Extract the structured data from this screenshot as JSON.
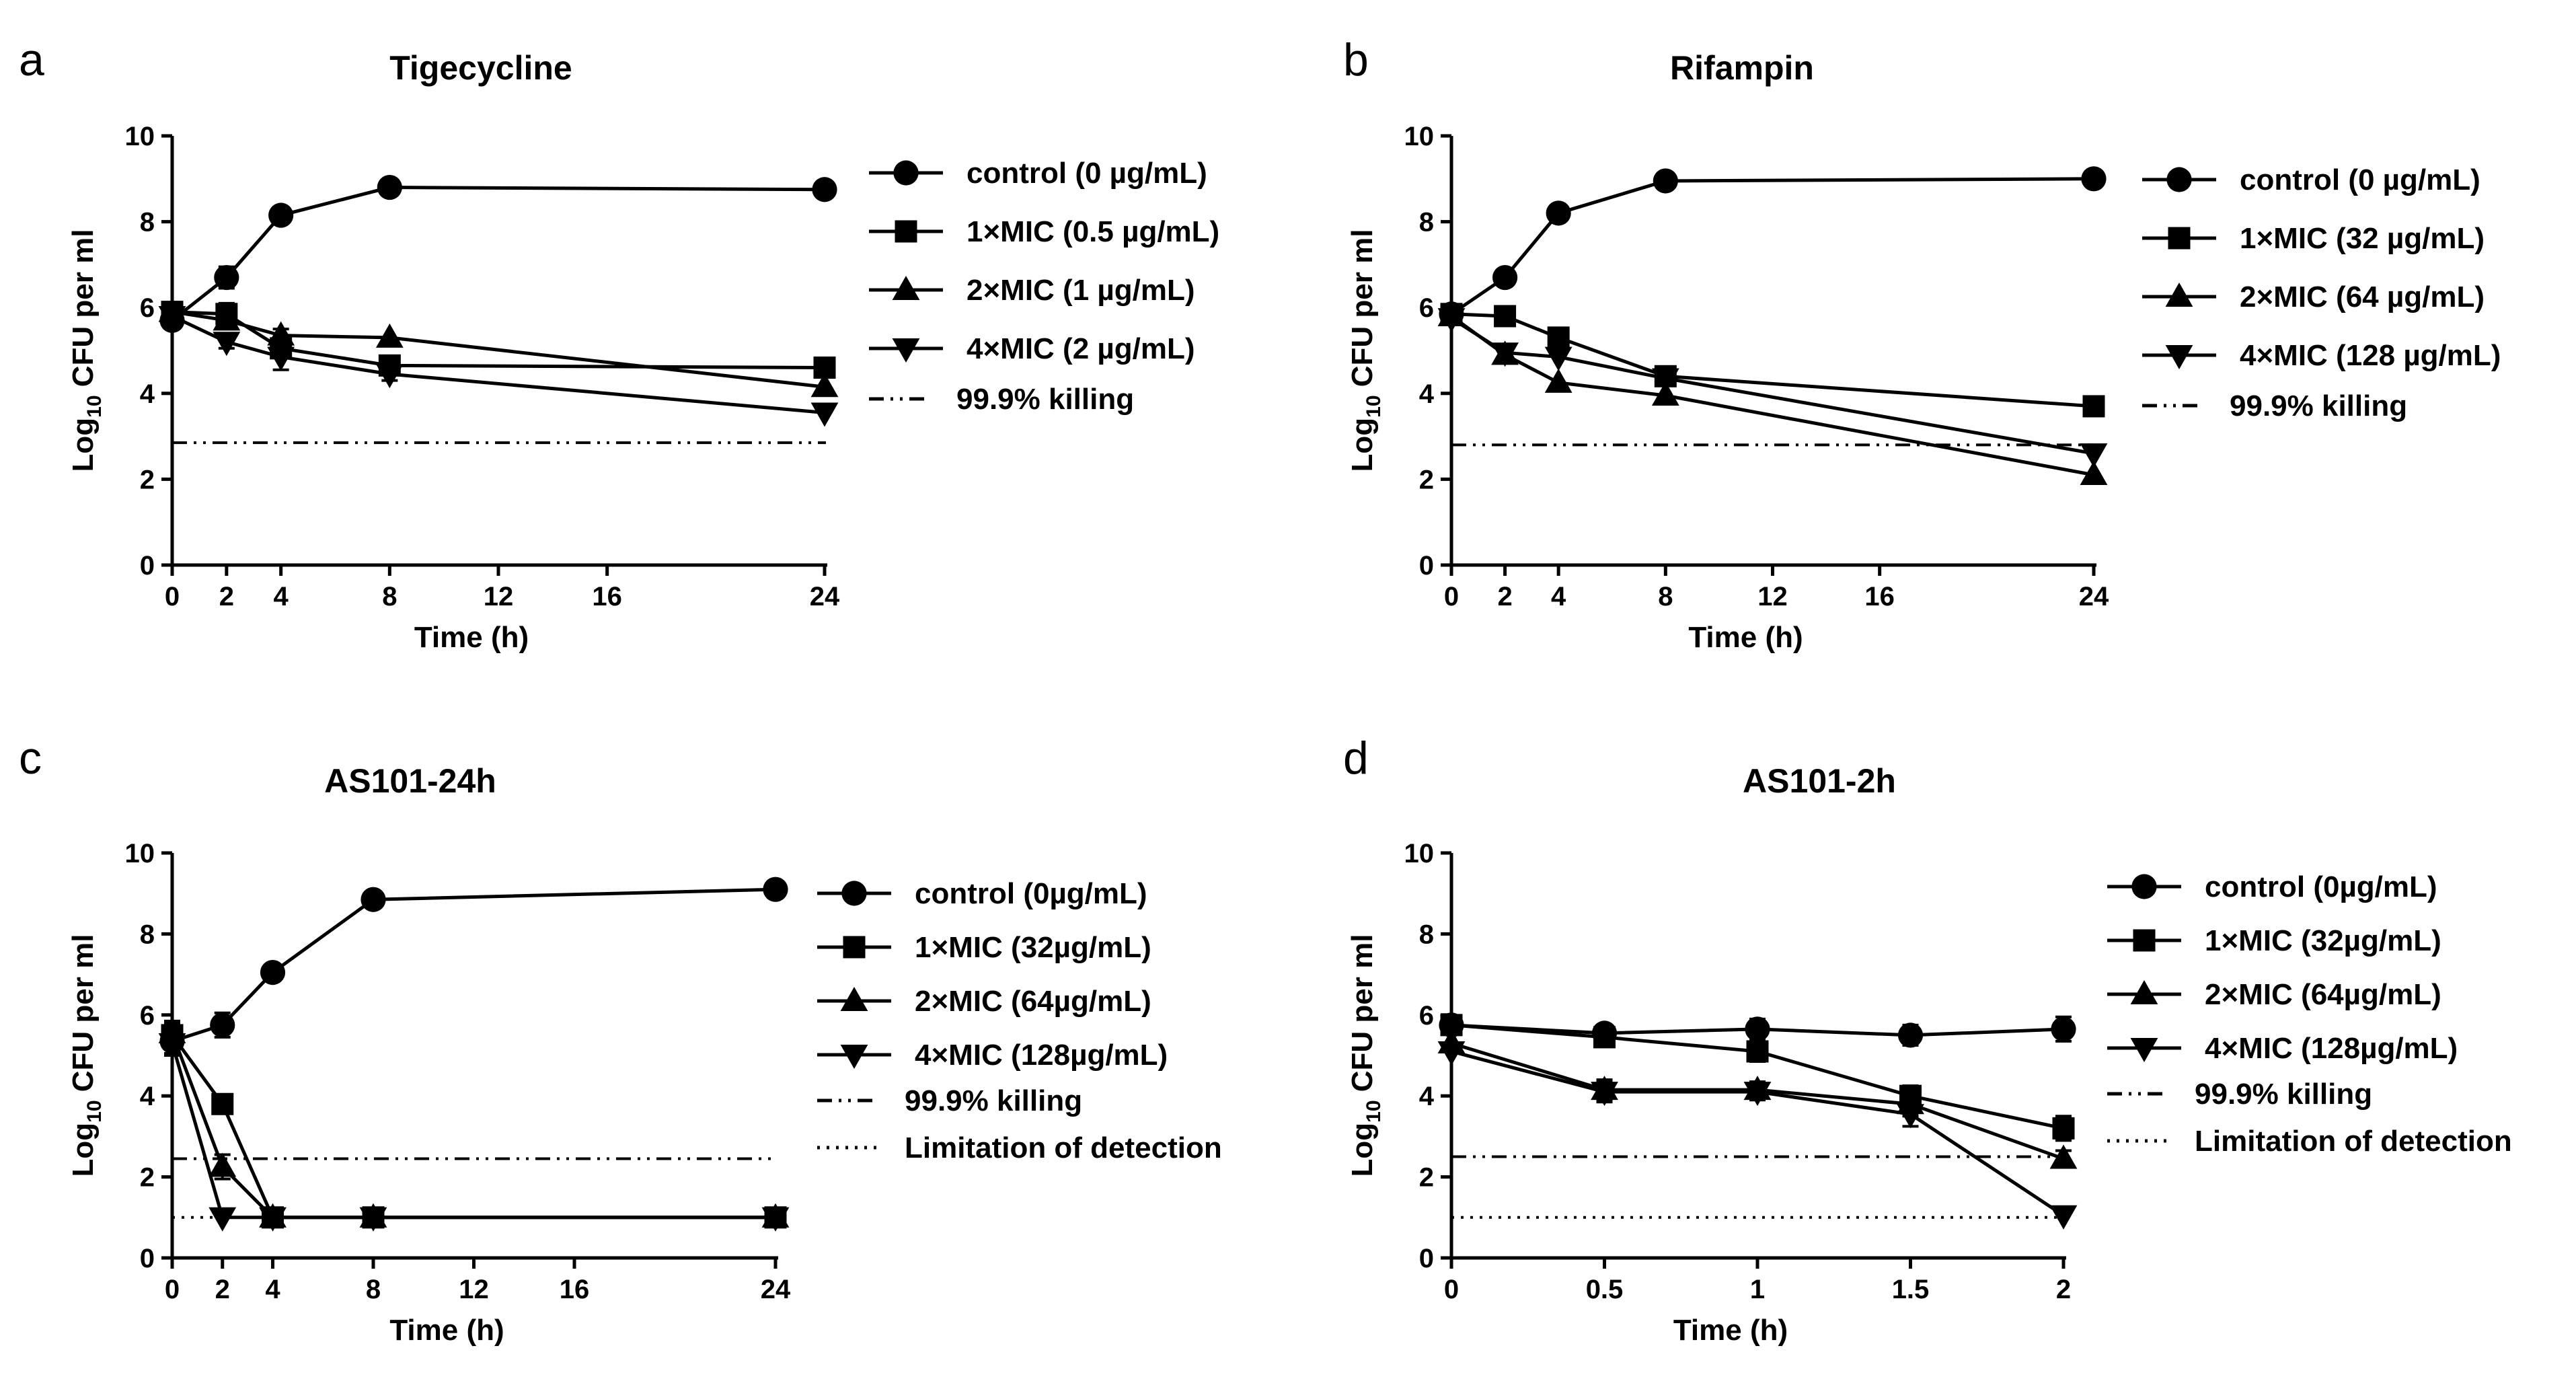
{
  "chart_data": [
    {
      "panel": "a",
      "type": "line",
      "title": "Tigecycline",
      "xlabel": "Time (h)",
      "ylabel": "Log10 CFU per ml",
      "ylabel_main": "Log",
      "ylabel_sub": "10",
      "ylabel_rest": " CFU per ml",
      "xlim": [
        0,
        24
      ],
      "ylim": [
        0,
        10
      ],
      "xticks": [
        "0",
        "2",
        "4",
        "8",
        "12",
        "16",
        "24"
      ],
      "xtick_values": [
        0,
        2,
        4,
        8,
        12,
        16,
        24
      ],
      "yticks": [
        "0",
        "2",
        "4",
        "6",
        "8",
        "10"
      ],
      "ytick_values": [
        0,
        2,
        4,
        6,
        8,
        10
      ],
      "series": [
        {
          "name": "control (0 µg/mL)",
          "marker": "circle",
          "x": [
            0,
            2,
            4,
            8,
            24
          ],
          "y": [
            5.7,
            6.7,
            8.15,
            8.8,
            8.75
          ],
          "err": [
            0.15,
            0.25,
            0.1,
            0.1,
            0.1
          ]
        },
        {
          "name": "1×MIC (0.5 µg/mL)",
          "marker": "square",
          "x": [
            0,
            2,
            4,
            8,
            24
          ],
          "y": [
            5.9,
            5.85,
            5.05,
            4.65,
            4.6
          ],
          "err": [
            0.1,
            0.25,
            0.2,
            0.15,
            0.1
          ]
        },
        {
          "name": "2×MIC (1 µg/mL)",
          "marker": "triangle-up",
          "x": [
            0,
            2,
            4,
            8,
            24
          ],
          "y": [
            5.9,
            5.7,
            5.35,
            5.3,
            4.15
          ],
          "err": [
            0.1,
            0.2,
            0.15,
            0.1,
            0.1
          ]
        },
        {
          "name": "4×MIC (2 µg/mL)",
          "marker": "triangle-down",
          "x": [
            0,
            2,
            4,
            8,
            24
          ],
          "y": [
            5.8,
            5.2,
            4.85,
            4.45,
            3.55
          ],
          "err": [
            0.1,
            0.15,
            0.3,
            0.15,
            0.1
          ]
        }
      ],
      "reference_lines": [
        {
          "name": "99.9% killing",
          "style": "dashdotdot",
          "y": 2.85
        }
      ]
    },
    {
      "panel": "b",
      "type": "line",
      "title": "Rifampin",
      "xlabel": "Time (h)",
      "ylabel": "Log10 CFU per ml",
      "ylabel_main": "Log",
      "ylabel_sub": "10",
      "ylabel_rest": " CFU per ml",
      "xlim": [
        0,
        24
      ],
      "ylim": [
        0,
        10
      ],
      "xticks": [
        "0",
        "2",
        "4",
        "8",
        "12",
        "16",
        "24"
      ],
      "xtick_values": [
        0,
        2,
        4,
        8,
        12,
        16,
        24
      ],
      "yticks": [
        "0",
        "2",
        "4",
        "6",
        "8",
        "10"
      ],
      "ytick_values": [
        0,
        2,
        4,
        6,
        8,
        10
      ],
      "series": [
        {
          "name": "control (0 µg/mL)",
          "marker": "circle",
          "x": [
            0,
            2,
            4,
            8,
            24
          ],
          "y": [
            5.85,
            6.7,
            8.2,
            8.95,
            9.0
          ],
          "err": [
            0.1,
            0.1,
            0.1,
            0.1,
            0.1
          ]
        },
        {
          "name": "1×MIC (32 µg/mL)",
          "marker": "square",
          "x": [
            0,
            2,
            4,
            8,
            24
          ],
          "y": [
            5.85,
            5.8,
            5.3,
            4.4,
            3.7
          ],
          "err": [
            0.1,
            0.1,
            0.1,
            0.1,
            0.1
          ]
        },
        {
          "name": "2×MIC (64 µg/mL)",
          "marker": "triangle-up",
          "x": [
            0,
            2,
            4,
            8,
            24
          ],
          "y": [
            5.8,
            4.9,
            4.25,
            3.95,
            2.1
          ],
          "err": [
            0.1,
            0.1,
            0.1,
            0.1,
            0.1
          ]
        },
        {
          "name": "4×MIC (128 µg/mL)",
          "marker": "triangle-down",
          "x": [
            0,
            2,
            4,
            8,
            24
          ],
          "y": [
            5.75,
            4.95,
            4.85,
            4.35,
            2.6
          ],
          "err": [
            0.1,
            0.1,
            0.1,
            0.1,
            0.1
          ]
        }
      ],
      "reference_lines": [
        {
          "name": "99.9% killing",
          "style": "dashdotdot",
          "y": 2.8
        }
      ]
    },
    {
      "panel": "c",
      "type": "line",
      "title": "AS101-24h",
      "xlabel": "Time (h)",
      "ylabel": "Log10 CFU per ml",
      "ylabel_main": "Log",
      "ylabel_sub": "10",
      "ylabel_rest": " CFU per ml",
      "xlim": [
        0,
        24
      ],
      "ylim": [
        0,
        10
      ],
      "xticks": [
        "0",
        "2",
        "4",
        "8",
        "12",
        "16",
        "24"
      ],
      "xtick_values": [
        0,
        2,
        4,
        8,
        12,
        16,
        24
      ],
      "yticks": [
        "0",
        "2",
        "4",
        "6",
        "8",
        "10"
      ],
      "ytick_values": [
        0,
        2,
        4,
        6,
        8,
        10
      ],
      "series": [
        {
          "name": "control (0µg/mL)",
          "marker": "circle",
          "x": [
            0,
            2,
            4,
            8,
            24
          ],
          "y": [
            5.35,
            5.75,
            7.05,
            8.85,
            9.1
          ],
          "err": [
            0.3,
            0.3,
            0.1,
            0.1,
            0.1
          ]
        },
        {
          "name": "1×MIC (32µg/mL)",
          "marker": "square",
          "x": [
            0,
            2,
            4,
            8,
            24
          ],
          "y": [
            5.5,
            3.8,
            1.0,
            1.0,
            1.0
          ],
          "err": [
            0.3,
            0.1,
            0.1,
            0.1,
            0.1
          ]
        },
        {
          "name": "2×MIC (64µg/mL)",
          "marker": "triangle-up",
          "x": [
            0,
            2,
            4,
            8,
            24
          ],
          "y": [
            5.55,
            2.25,
            1.0,
            1.0,
            1.0
          ],
          "err": [
            0.3,
            0.3,
            0.1,
            0.1,
            0.1
          ]
        },
        {
          "name": "4×MIC (128µg/mL)",
          "marker": "triangle-down",
          "x": [
            0,
            2,
            4,
            8,
            24
          ],
          "y": [
            5.3,
            1.0,
            1.0,
            1.0,
            1.0
          ],
          "err": [
            0.3,
            0.1,
            0.1,
            0.1,
            0.1
          ]
        }
      ],
      "reference_lines": [
        {
          "name": "99.9% killing",
          "style": "dashdotdot",
          "y": 2.45
        },
        {
          "name": "Limitation of detection",
          "style": "dotted",
          "y": 1.0
        }
      ]
    },
    {
      "panel": "d",
      "type": "line",
      "title": "AS101-2h",
      "xlabel": "Time (h)",
      "ylabel": "Log10 CFU per ml",
      "ylabel_main": "Log",
      "ylabel_sub": "10",
      "ylabel_rest": " CFU per ml",
      "xlim": [
        0,
        2
      ],
      "ylim": [
        0,
        10
      ],
      "xticks": [
        "0",
        "0.5",
        "1",
        "1.5",
        "2"
      ],
      "xtick_values": [
        0,
        0.5,
        1,
        1.5,
        2
      ],
      "yticks": [
        "0",
        "2",
        "4",
        "6",
        "8",
        "10"
      ],
      "ytick_values": [
        0,
        2,
        4,
        6,
        8,
        10
      ],
      "series": [
        {
          "name": "control (0µg/mL)",
          "marker": "circle",
          "x": [
            0,
            0.5,
            1,
            1.5,
            2
          ],
          "y": [
            5.75,
            5.55,
            5.65,
            5.5,
            5.65
          ],
          "err": [
            0.15,
            0.2,
            0.25,
            0.25,
            0.3
          ]
        },
        {
          "name": "1×MIC (32µg/mL)",
          "marker": "square",
          "x": [
            0,
            0.5,
            1,
            1.5,
            2
          ],
          "y": [
            5.75,
            5.45,
            5.1,
            4.0,
            3.2
          ],
          "err": [
            0.15,
            0.2,
            0.25,
            0.25,
            0.3
          ]
        },
        {
          "name": "2×MIC (64µg/mL)",
          "marker": "triangle-up",
          "x": [
            0,
            0.5,
            1,
            1.5,
            2
          ],
          "y": [
            5.3,
            4.15,
            4.15,
            3.8,
            2.45
          ],
          "err": [
            0.1,
            0.25,
            0.2,
            0.3,
            0.2
          ]
        },
        {
          "name": "4×MIC (128µg/mL)",
          "marker": "triangle-down",
          "x": [
            0,
            0.5,
            1,
            1.5,
            2
          ],
          "y": [
            5.1,
            4.1,
            4.1,
            3.55,
            1.05
          ],
          "err": [
            0.1,
            0.25,
            0.2,
            0.3,
            0.1
          ]
        }
      ],
      "reference_lines": [
        {
          "name": "99.9% killing",
          "style": "dashdotdot",
          "y": 2.5
        },
        {
          "name": "Limitation of detection",
          "style": "dotted",
          "y": 1.0
        }
      ]
    }
  ]
}
